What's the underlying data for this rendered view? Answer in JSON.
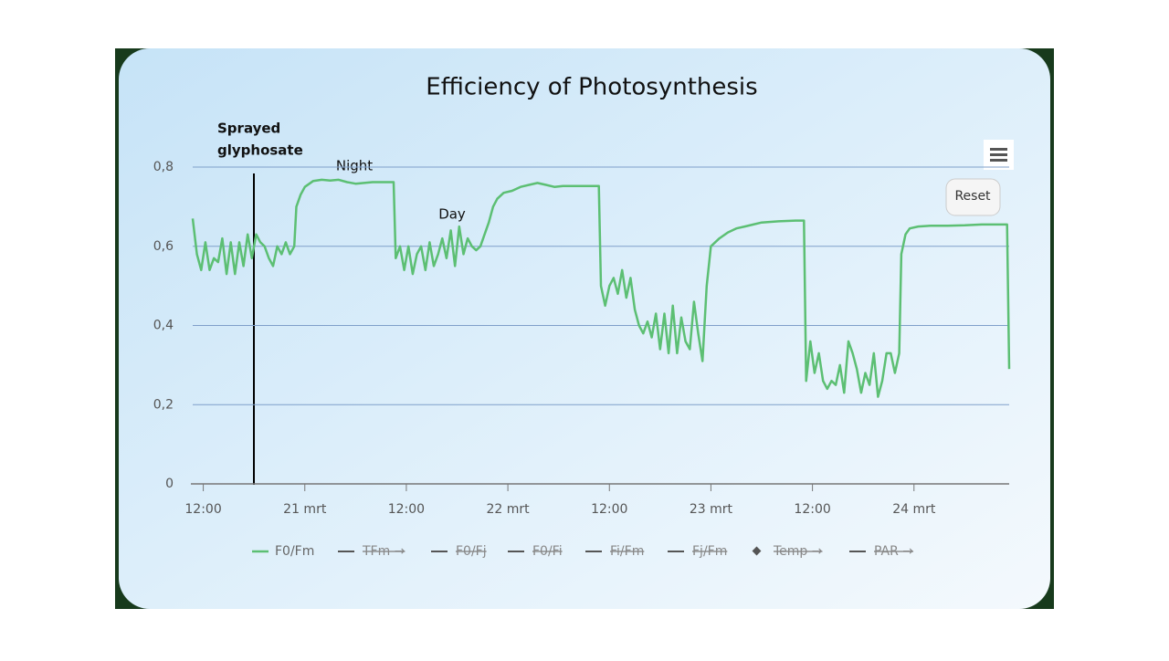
{
  "chart_data": {
    "type": "line",
    "title": "Efficiency of Photosynthesis",
    "annotations": [
      {
        "text": [
          "Sprayed",
          "glyphosate"
        ]
      },
      {
        "text": "Night"
      },
      {
        "text": "Day"
      }
    ],
    "reset_button": "Reset",
    "xlim": [
      "20 mrt 10:45",
      "24 mrt 11:15"
    ],
    "xticks": [
      {
        "value": "20 mrt 12:00",
        "label": "12:00"
      },
      {
        "value": "21 mrt 00:00",
        "label": "21 mrt"
      },
      {
        "value": "21 mrt 12:00",
        "label": "12:00"
      },
      {
        "value": "22 mrt 00:00",
        "label": "22 mrt"
      },
      {
        "value": "22 mrt 12:00",
        "label": "12:00"
      },
      {
        "value": "23 mrt 00:00",
        "label": "23 mrt"
      },
      {
        "value": "23 mrt 12:00",
        "label": "12:00"
      },
      {
        "value": "24 mrt 00:00",
        "label": "24 mrt"
      }
    ],
    "ylim": [
      0,
      0.8
    ],
    "yticks": [
      0,
      {
        "value": 0.2,
        "label": "0,2"
      },
      {
        "value": 0.4,
        "label": "0,4"
      },
      {
        "value": 0.6,
        "label": "0,6"
      },
      {
        "value": 0.8,
        "label": "0,8"
      }
    ],
    "grid": true,
    "x": [
      "20 mrt 10:45",
      "20 mrt 11:15",
      "20 mrt 11:45",
      "20 mrt 12:15",
      "20 mrt 12:45",
      "20 mrt 13:15",
      "20 mrt 13:45",
      "20 mrt 14:15",
      "20 mrt 14:45",
      "20 mrt 15:15",
      "20 mrt 15:45",
      "20 mrt 16:15",
      "20 mrt 16:45",
      "20 mrt 17:15",
      "20 mrt 17:45",
      "20 mrt 18:15",
      "20 mrt 18:45",
      "20 mrt 19:15",
      "20 mrt 19:45",
      "20 mrt 20:15",
      "20 mrt 20:45",
      "20 mrt 21:15",
      "20 mrt 21:45",
      "20 mrt 22:15",
      "20 mrt 22:45",
      "20 mrt 23:00",
      "20 mrt 23:30",
      "21 mrt 00:00",
      "21 mrt 01:00",
      "21 mrt 02:00",
      "21 mrt 03:00",
      "21 mrt 04:00",
      "21 mrt 05:00",
      "21 mrt 06:00",
      "21 mrt 07:00",
      "21 mrt 08:00",
      "21 mrt 09:00",
      "21 mrt 10:30",
      "21 mrt 10:45",
      "21 mrt 11:15",
      "21 mrt 11:45",
      "21 mrt 12:15",
      "21 mrt 12:45",
      "21 mrt 13:15",
      "21 mrt 13:45",
      "21 mrt 14:15",
      "21 mrt 14:45",
      "21 mrt 15:15",
      "21 mrt 15:45",
      "21 mrt 16:15",
      "21 mrt 16:45",
      "21 mrt 17:15",
      "21 mrt 17:45",
      "21 mrt 18:15",
      "21 mrt 18:45",
      "21 mrt 19:15",
      "21 mrt 19:45",
      "21 mrt 20:15",
      "21 mrt 20:45",
      "21 mrt 21:15",
      "21 mrt 21:45",
      "21 mrt 22:15",
      "21 mrt 22:45",
      "21 mrt 23:30",
      "22 mrt 00:30",
      "22 mrt 01:30",
      "22 mrt 02:30",
      "22 mrt 03:30",
      "22 mrt 04:30",
      "22 mrt 05:30",
      "22 mrt 06:30",
      "22 mrt 07:30",
      "22 mrt 08:30",
      "22 mrt 10:45",
      "22 mrt 11:00",
      "22 mrt 11:30",
      "22 mrt 12:00",
      "22 mrt 12:30",
      "22 mrt 13:00",
      "22 mrt 13:30",
      "22 mrt 14:00",
      "22 mrt 14:30",
      "22 mrt 15:00",
      "22 mrt 15:30",
      "22 mrt 16:00",
      "22 mrt 16:30",
      "22 mrt 17:00",
      "22 mrt 17:30",
      "22 mrt 18:00",
      "22 mrt 18:30",
      "22 mrt 19:00",
      "22 mrt 19:30",
      "22 mrt 20:00",
      "22 mrt 20:30",
      "22 mrt 21:00",
      "22 mrt 21:30",
      "22 mrt 22:00",
      "22 mrt 22:30",
      "22 mrt 23:00",
      "22 mrt 23:30",
      "23 mrt 00:00",
      "23 mrt 01:00",
      "23 mrt 02:00",
      "23 mrt 03:00",
      "23 mrt 04:00",
      "23 mrt 05:00",
      "23 mrt 06:00",
      "23 mrt 08:00",
      "23 mrt 10:00",
      "23 mrt 11:00",
      "23 mrt 11:15",
      "23 mrt 11:45",
      "23 mrt 12:15",
      "23 mrt 12:45",
      "23 mrt 13:15",
      "23 mrt 13:45",
      "23 mrt 14:15",
      "23 mrt 14:45",
      "23 mrt 15:15",
      "23 mrt 15:45",
      "23 mrt 16:15",
      "23 mrt 16:45",
      "23 mrt 17:15",
      "23 mrt 17:45",
      "23 mrt 18:15",
      "23 mrt 18:45",
      "23 mrt 19:15",
      "23 mrt 19:45",
      "23 mrt 20:15",
      "23 mrt 20:45",
      "23 mrt 21:15",
      "23 mrt 21:45",
      "23 mrt 22:15",
      "23 mrt 22:30",
      "23 mrt 23:00",
      "23 mrt 23:30",
      "24 mrt 00:30",
      "24 mrt 02:00",
      "24 mrt 04:00",
      "24 mrt 06:00",
      "24 mrt 08:00",
      "24 mrt 10:00",
      "24 mrt 11:00",
      "24 mrt 11:15"
    ],
    "series": [
      {
        "name": "F0/Fm",
        "color": "#5cbf73",
        "values": [
          0.67,
          0.58,
          0.54,
          0.61,
          0.54,
          0.57,
          0.56,
          0.62,
          0.53,
          0.61,
          0.53,
          0.61,
          0.55,
          0.63,
          0.57,
          0.63,
          0.61,
          0.6,
          0.57,
          0.55,
          0.6,
          0.58,
          0.61,
          0.58,
          0.6,
          0.7,
          0.73,
          0.75,
          0.765,
          0.768,
          0.766,
          0.768,
          0.762,
          0.758,
          0.76,
          0.762,
          0.762,
          0.762,
          0.57,
          0.6,
          0.54,
          0.6,
          0.53,
          0.58,
          0.6,
          0.54,
          0.61,
          0.55,
          0.58,
          0.62,
          0.57,
          0.64,
          0.55,
          0.65,
          0.58,
          0.62,
          0.6,
          0.59,
          0.6,
          0.63,
          0.66,
          0.7,
          0.72,
          0.735,
          0.74,
          0.75,
          0.755,
          0.76,
          0.755,
          0.75,
          0.752,
          0.752,
          0.752,
          0.752,
          0.5,
          0.45,
          0.5,
          0.52,
          0.48,
          0.54,
          0.47,
          0.52,
          0.44,
          0.4,
          0.38,
          0.41,
          0.37,
          0.43,
          0.34,
          0.43,
          0.33,
          0.45,
          0.33,
          0.42,
          0.36,
          0.34,
          0.46,
          0.38,
          0.31,
          0.5,
          0.6,
          0.62,
          0.635,
          0.645,
          0.65,
          0.655,
          0.66,
          0.663,
          0.665,
          0.665,
          0.26,
          0.36,
          0.28,
          0.33,
          0.26,
          0.24,
          0.26,
          0.25,
          0.3,
          0.23,
          0.36,
          0.33,
          0.29,
          0.23,
          0.28,
          0.25,
          0.33,
          0.22,
          0.26,
          0.33,
          0.33,
          0.28,
          0.33,
          0.58,
          0.63,
          0.645,
          0.65,
          0.652,
          0.652,
          0.653,
          0.655,
          0.655,
          0.655,
          0.29
        ]
      }
    ],
    "legend_hidden": [
      "TFm →",
      "F0/Fj",
      "F0/Fi",
      "Fi/Fm",
      "Fj/Fm",
      "Temp →",
      "PAR →"
    ]
  }
}
